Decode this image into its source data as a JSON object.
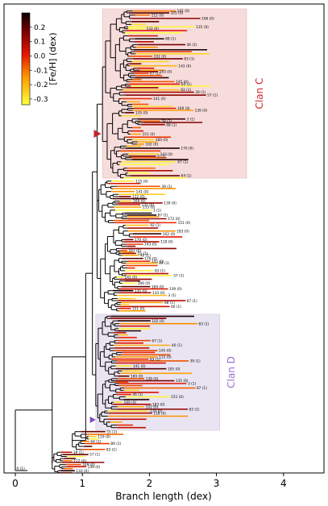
{
  "chart_data": {
    "type": "dendrogram",
    "xlabel": "Branch length (dex)",
    "xlim": [
      0,
      4.6
    ],
    "xticks": [
      0,
      1,
      2,
      3,
      4
    ],
    "colorbar": {
      "label": "[Fe/H] (dex)",
      "range": [
        -0.34,
        0.3
      ],
      "ticks": [
        "0.2",
        "0.1",
        "0.0",
        "-0.1",
        "-0.2",
        "-0.3"
      ],
      "tick_values": [
        0.2,
        0.1,
        0.0,
        -0.1,
        -0.2,
        -0.3
      ],
      "colormap": "hot"
    },
    "clans": [
      {
        "name": "Clan C",
        "color": "#d42a2a",
        "fill": "#f7dcdc",
        "x_range": [
          1.3,
          3.45
        ],
        "node_x": 1.22
      },
      {
        "name": "Clan D",
        "color": "#9a6fcf",
        "fill": "#e9e4f1",
        "x_range": [
          1.2,
          3.05
        ],
        "node_x": 1.15
      }
    ],
    "root_leaf": "0 (1)",
    "leaf_labels_visible": [
      "141 (0)",
      "105 (0)",
      "112 (0)",
      "106 (0)",
      "169 (0)",
      "139 (0)",
      "135 (0)",
      "133 (0)",
      "3 (1)",
      "58 (1)",
      "87 (1)",
      "88 (1)",
      "172 (0)",
      "46 (1)",
      "151 (0)",
      "92 (1)",
      "160 (0)",
      "183 (0)",
      "102 (0)",
      "83 (1)",
      "170 (0)",
      "118 (0)",
      "143 (0)",
      "9 (1)",
      "86 (1)",
      "163 (0)",
      "67 (1)",
      "55 (1)",
      "40 (1)",
      "119 (0)",
      "145 (0)",
      "64 (1)",
      "89 (1)",
      "115 (0)",
      "83 (1)",
      "39 (1)",
      "57 (1)"
    ]
  }
}
